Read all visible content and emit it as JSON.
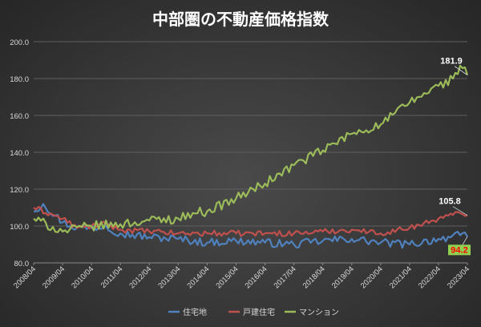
{
  "chart_data": {
    "type": "line",
    "title": "中部圏の不動産価格指数",
    "ylim": [
      80,
      200
    ],
    "yticks": [
      "80.0",
      "100.0",
      "120.0",
      "140.0",
      "160.0",
      "180.0",
      "200.0"
    ],
    "xtick_labels": [
      "2008/04",
      "2009/04",
      "2010/04",
      "2011/04",
      "2012/04",
      "2013/04",
      "2014/04",
      "2015/04",
      "2016/04",
      "2017/04",
      "2018/04",
      "2019/04",
      "2020/04",
      "2021/04",
      "2022/04",
      "2023/04"
    ],
    "grid": true,
    "legend_position": "bottom",
    "series": [
      {
        "name": "住宅地",
        "color": "#4f81bd",
        "anchors": [
          [
            "2008/04",
            108
          ],
          [
            "2008/08",
            112
          ],
          [
            "2009/04",
            102
          ],
          [
            "2009/10",
            99
          ],
          [
            "2010/04",
            99
          ],
          [
            "2010/10",
            100
          ],
          [
            "2011/04",
            96
          ],
          [
            "2012/04",
            94
          ],
          [
            "2013/04",
            93
          ],
          [
            "2014/04",
            91
          ],
          [
            "2015/04",
            92
          ],
          [
            "2016/04",
            91
          ],
          [
            "2017/04",
            90
          ],
          [
            "2018/04",
            92
          ],
          [
            "2019/04",
            93
          ],
          [
            "2020/04",
            91
          ],
          [
            "2021/04",
            90
          ],
          [
            "2022/04",
            93
          ],
          [
            "2023/01",
            95
          ],
          [
            "2023/04",
            94.2
          ]
        ]
      },
      {
        "name": "戸建住宅",
        "color": "#c0504d",
        "anchors": [
          [
            "2008/04",
            110
          ],
          [
            "2009/04",
            104
          ],
          [
            "2009/10",
            99
          ],
          [
            "2010/04",
            100
          ],
          [
            "2010/10",
            101
          ],
          [
            "2011/04",
            98
          ],
          [
            "2012/04",
            97
          ],
          [
            "2013/04",
            96
          ],
          [
            "2014/04",
            96
          ],
          [
            "2015/04",
            96
          ],
          [
            "2016/04",
            96
          ],
          [
            "2017/04",
            96
          ],
          [
            "2018/04",
            97
          ],
          [
            "2019/04",
            98
          ],
          [
            "2020/04",
            96
          ],
          [
            "2021/04",
            99
          ],
          [
            "2022/04",
            104
          ],
          [
            "2022/10",
            106
          ],
          [
            "2023/01",
            107
          ],
          [
            "2023/04",
            105.8
          ]
        ]
      },
      {
        "name": "マンション",
        "color": "#9bbb59",
        "anchors": [
          [
            "2008/04",
            104
          ],
          [
            "2009/04",
            97
          ],
          [
            "2010/04",
            100
          ],
          [
            "2011/04",
            101
          ],
          [
            "2012/04",
            103
          ],
          [
            "2013/04",
            104
          ],
          [
            "2013/10",
            107
          ],
          [
            "2014/04",
            108
          ],
          [
            "2015/04",
            115
          ],
          [
            "2016/04",
            123
          ],
          [
            "2017/04",
            133
          ],
          [
            "2018/04",
            141
          ],
          [
            "2019/04",
            150
          ],
          [
            "2020/04",
            155
          ],
          [
            "2021/04",
            167
          ],
          [
            "2022/04",
            176
          ],
          [
            "2022/10",
            180
          ],
          [
            "2023/01",
            187
          ],
          [
            "2023/04",
            181.9
          ]
        ]
      }
    ],
    "annotations": [
      {
        "text": "181.9",
        "series": "マンション",
        "x": "2023/04",
        "y": 181.9
      },
      {
        "text": "105.8",
        "series": "戸建住宅",
        "x": "2023/04",
        "y": 105.8
      },
      {
        "text": "94.2",
        "series": "住宅地",
        "x": "2023/04",
        "y": 94.2,
        "text_color": "#ff0000",
        "background": "#92d050"
      }
    ]
  }
}
